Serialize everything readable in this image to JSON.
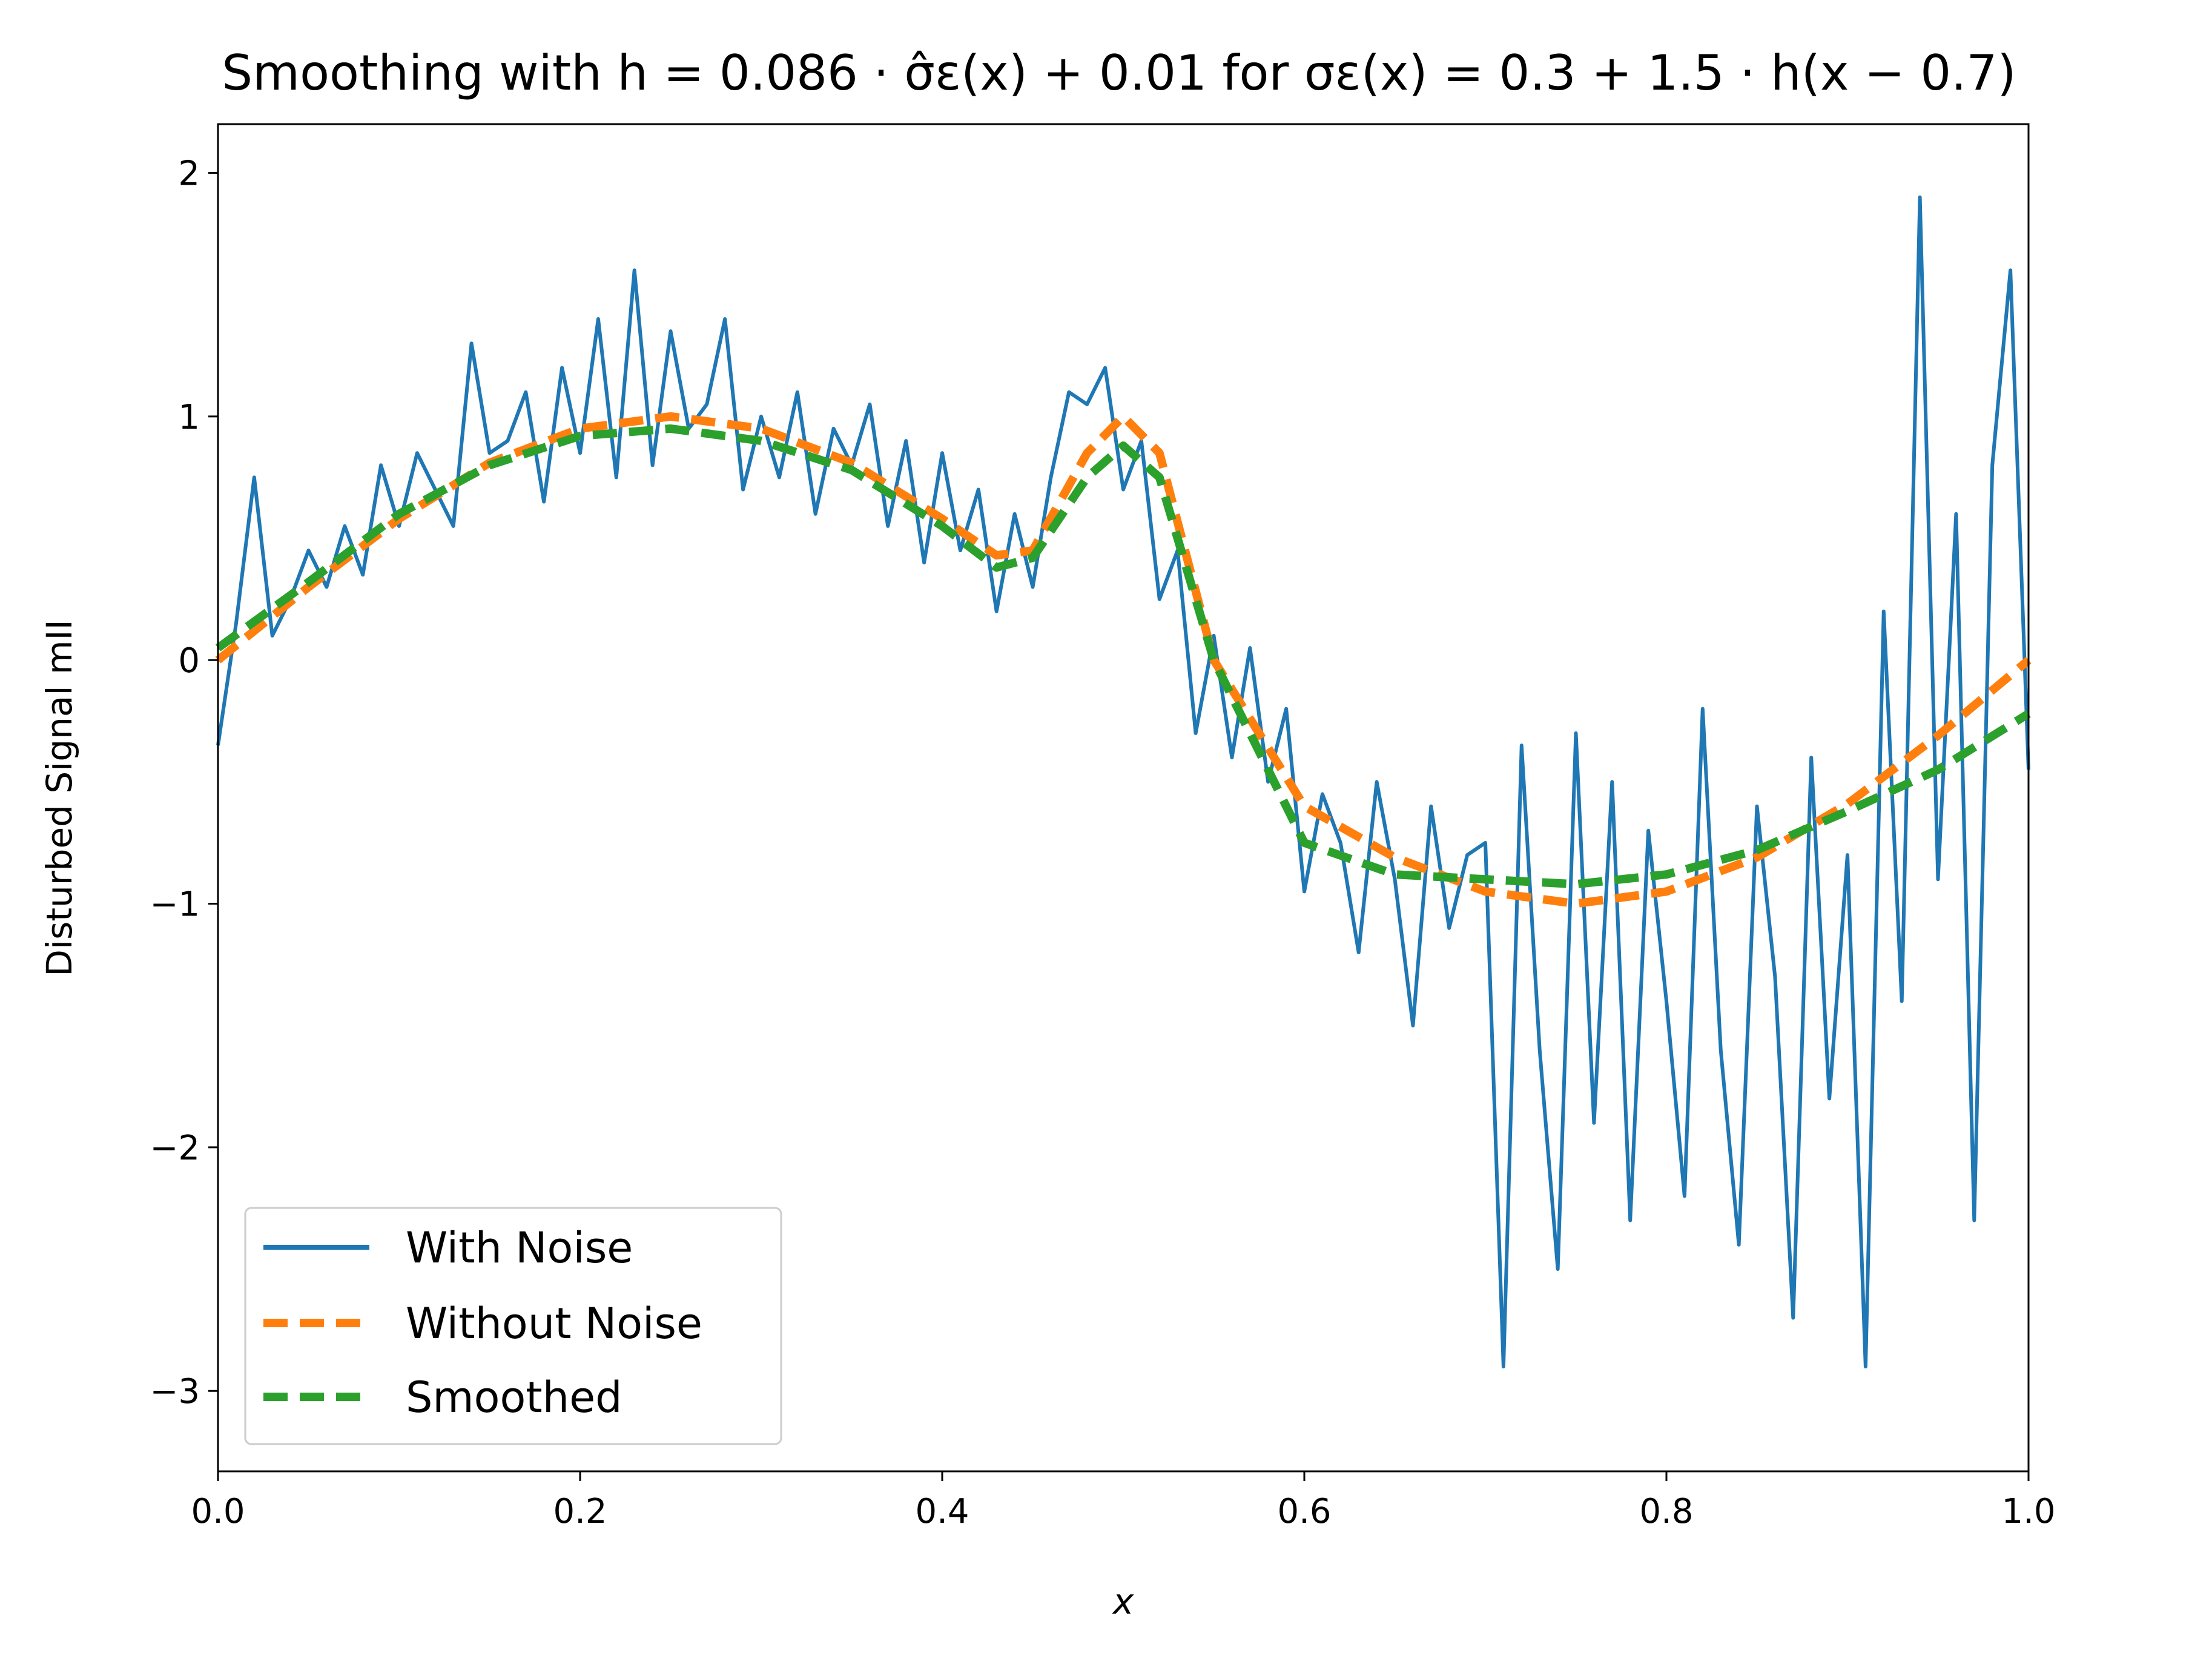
{
  "chart_data": {
    "type": "line",
    "title": "Smoothing with h = 0.086 · σ̂ε(x) + 0.01 for σε(x) = 0.3 + 1.5 · h(x − 0.7)",
    "xlabel": "x",
    "ylabel": "Disturbed Signal mII",
    "xlim": [
      0.0,
      1.0
    ],
    "ylim": [
      -3.33,
      2.2
    ],
    "grid": false,
    "legend_position": "lower-left",
    "xticks": [
      0.0,
      0.2,
      0.4,
      0.6,
      0.8,
      1.0
    ],
    "xtick_labels": [
      "0.0",
      "0.2",
      "0.4",
      "0.6",
      "0.8",
      "1.0"
    ],
    "yticks": [
      -3,
      -2,
      -1,
      0,
      1,
      2
    ],
    "ytick_labels": [
      "−3",
      "−2",
      "−1",
      "0",
      "1",
      "2"
    ],
    "series": [
      {
        "name": "With Noise",
        "color": "#1f77b4",
        "style": "solid",
        "x": [
          0.0,
          0.01,
          0.02,
          0.03,
          0.04,
          0.05,
          0.06,
          0.07,
          0.08,
          0.09,
          0.1,
          0.11,
          0.12,
          0.13,
          0.14,
          0.15,
          0.16,
          0.17,
          0.18,
          0.19,
          0.2,
          0.21,
          0.22,
          0.23,
          0.24,
          0.25,
          0.26,
          0.27,
          0.28,
          0.29,
          0.3,
          0.31,
          0.32,
          0.33,
          0.34,
          0.35,
          0.36,
          0.37,
          0.38,
          0.39,
          0.4,
          0.41,
          0.42,
          0.43,
          0.44,
          0.45,
          0.46,
          0.47,
          0.48,
          0.49,
          0.5,
          0.51,
          0.52,
          0.53,
          0.54,
          0.55,
          0.56,
          0.57,
          0.58,
          0.59,
          0.6,
          0.61,
          0.62,
          0.63,
          0.64,
          0.65,
          0.66,
          0.67,
          0.68,
          0.69,
          0.7,
          0.71,
          0.72,
          0.73,
          0.74,
          0.75,
          0.76,
          0.77,
          0.78,
          0.79,
          0.8,
          0.81,
          0.82,
          0.83,
          0.84,
          0.85,
          0.86,
          0.87,
          0.88,
          0.89,
          0.9,
          0.91,
          0.92,
          0.93,
          0.94,
          0.95,
          0.96,
          0.97,
          0.98,
          0.99,
          1.0
        ],
        "y": [
          -0.35,
          0.15,
          0.75,
          0.1,
          0.25,
          0.45,
          0.3,
          0.55,
          0.35,
          0.8,
          0.55,
          0.85,
          0.7,
          0.55,
          1.3,
          0.85,
          0.9,
          1.1,
          0.65,
          1.2,
          0.85,
          1.4,
          0.75,
          1.6,
          0.8,
          1.35,
          0.95,
          1.05,
          1.4,
          0.7,
          1.0,
          0.75,
          1.1,
          0.6,
          0.95,
          0.8,
          1.05,
          0.55,
          0.9,
          0.4,
          0.85,
          0.45,
          0.7,
          0.2,
          0.6,
          0.3,
          0.75,
          1.1,
          1.05,
          1.2,
          0.7,
          0.9,
          0.25,
          0.45,
          -0.3,
          0.1,
          -0.4,
          0.05,
          -0.5,
          -0.2,
          -0.95,
          -0.55,
          -0.75,
          -1.2,
          -0.5,
          -0.9,
          -1.5,
          -0.6,
          -1.1,
          -0.8,
          -0.75,
          -2.9,
          -0.35,
          -1.6,
          -2.5,
          -0.3,
          -1.9,
          -0.5,
          -2.3,
          -0.7,
          -1.4,
          -2.2,
          -0.2,
          -1.6,
          -2.4,
          -0.6,
          -1.3,
          -2.7,
          -0.4,
          -1.8,
          -0.8,
          -2.9,
          0.2,
          -1.4,
          1.9,
          -0.9,
          0.6,
          -2.3,
          0.8,
          1.6,
          -0.45
        ]
      },
      {
        "name": "Without Noise",
        "color": "#ff7f0e",
        "style": "dashed",
        "x": [
          0.0,
          0.05,
          0.1,
          0.15,
          0.2,
          0.25,
          0.3,
          0.35,
          0.4,
          0.43,
          0.45,
          0.48,
          0.5,
          0.52,
          0.55,
          0.6,
          0.65,
          0.7,
          0.75,
          0.8,
          0.85,
          0.9,
          0.95,
          1.0
        ],
        "y": [
          0.0,
          0.3,
          0.58,
          0.81,
          0.95,
          1.0,
          0.95,
          0.81,
          0.58,
          0.43,
          0.45,
          0.85,
          1.0,
          0.85,
          0.0,
          -0.6,
          -0.81,
          -0.95,
          -1.0,
          -0.95,
          -0.81,
          -0.59,
          -0.31,
          0.0
        ]
      },
      {
        "name": "Smoothed",
        "color": "#2ca02c",
        "style": "dashed",
        "x": [
          0.0,
          0.05,
          0.1,
          0.15,
          0.2,
          0.25,
          0.3,
          0.35,
          0.4,
          0.43,
          0.45,
          0.48,
          0.5,
          0.52,
          0.55,
          0.6,
          0.65,
          0.7,
          0.75,
          0.8,
          0.85,
          0.9,
          0.95,
          1.0
        ],
        "y": [
          0.05,
          0.32,
          0.6,
          0.8,
          0.92,
          0.95,
          0.9,
          0.78,
          0.55,
          0.38,
          0.42,
          0.75,
          0.88,
          0.75,
          0.0,
          -0.75,
          -0.88,
          -0.9,
          -0.92,
          -0.88,
          -0.78,
          -0.62,
          -0.45,
          -0.22
        ]
      }
    ]
  }
}
